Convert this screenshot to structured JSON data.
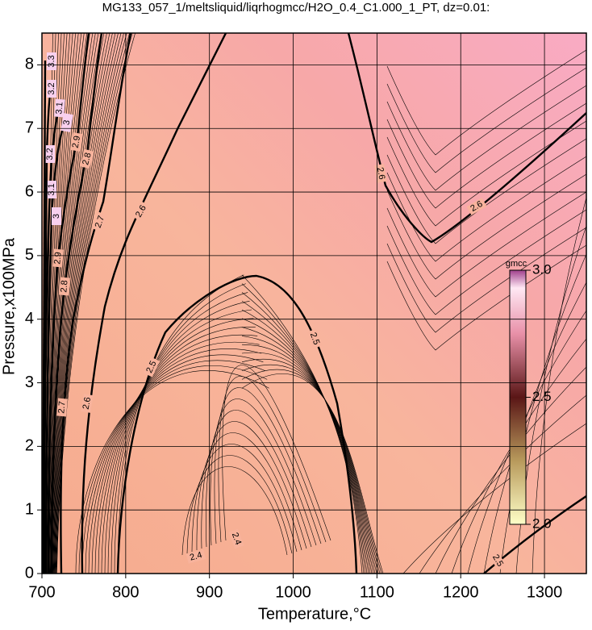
{
  "chart_data": {
    "type": "contour",
    "title": "MG133_057_1/meltsliquid/liqrhogmcc/H2O_0.4_C1.000_1_PT, dz=0.01:",
    "x_label": "Temperature,°C",
    "y_label": "Pressure,x100MPa",
    "xlim": [
      700,
      1350
    ],
    "ylim": [
      0,
      8.5
    ],
    "xticks": [
      700,
      800,
      900,
      1000,
      1100,
      1200,
      1300
    ],
    "yticks": [
      0,
      1,
      2,
      3,
      4,
      5,
      6,
      7,
      8
    ],
    "grid": true,
    "contour_levels": [
      2.4,
      2.5,
      2.6,
      2.7,
      2.8,
      2.9,
      3,
      3.1,
      3.2,
      3.3
    ],
    "colorbar": {
      "label": "gmcc",
      "lim": [
        2,
        3
      ],
      "ticks": [
        {
          "value": 3,
          "label": "3.0"
        },
        2.5,
        {
          "value": 2,
          "label": "2.0"
        }
      ]
    }
  }
}
